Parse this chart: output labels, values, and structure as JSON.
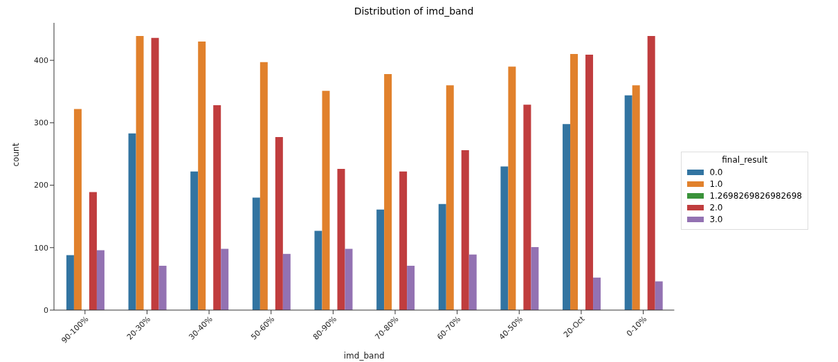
{
  "chart_data": {
    "type": "bar",
    "title": "Distribution of imd_band",
    "xlabel": "imd_band",
    "ylabel": "count",
    "legend_title": "final_result",
    "categories": [
      "90-100%",
      "20-30%",
      "30-40%",
      "50-60%",
      "80-90%",
      "70-80%",
      "60-70%",
      "40-50%",
      "20-Oct",
      "0-10%"
    ],
    "series": [
      {
        "name": "0.0",
        "color": "#3274a1",
        "values": [
          88,
          283,
          222,
          180,
          127,
          161,
          170,
          230,
          298,
          344
        ]
      },
      {
        "name": "1.0",
        "color": "#e1812c",
        "values": [
          322,
          439,
          430,
          397,
          351,
          378,
          360,
          390,
          410,
          360
        ]
      },
      {
        "name": "1.2698269826982698",
        "color": "#3a923a",
        "values": [
          null,
          null,
          null,
          null,
          null,
          null,
          null,
          null,
          null,
          null
        ]
      },
      {
        "name": "2.0",
        "color": "#c03d3e",
        "values": [
          189,
          436,
          328,
          277,
          226,
          222,
          256,
          329,
          409,
          439
        ]
      },
      {
        "name": "3.0",
        "color": "#9372b2",
        "values": [
          96,
          71,
          98,
          90,
          98,
          71,
          89,
          101,
          52,
          46
        ]
      }
    ],
    "ylim": [
      0,
      460
    ],
    "yticks": [
      0,
      100,
      200,
      300,
      400
    ],
    "legend": "right"
  }
}
